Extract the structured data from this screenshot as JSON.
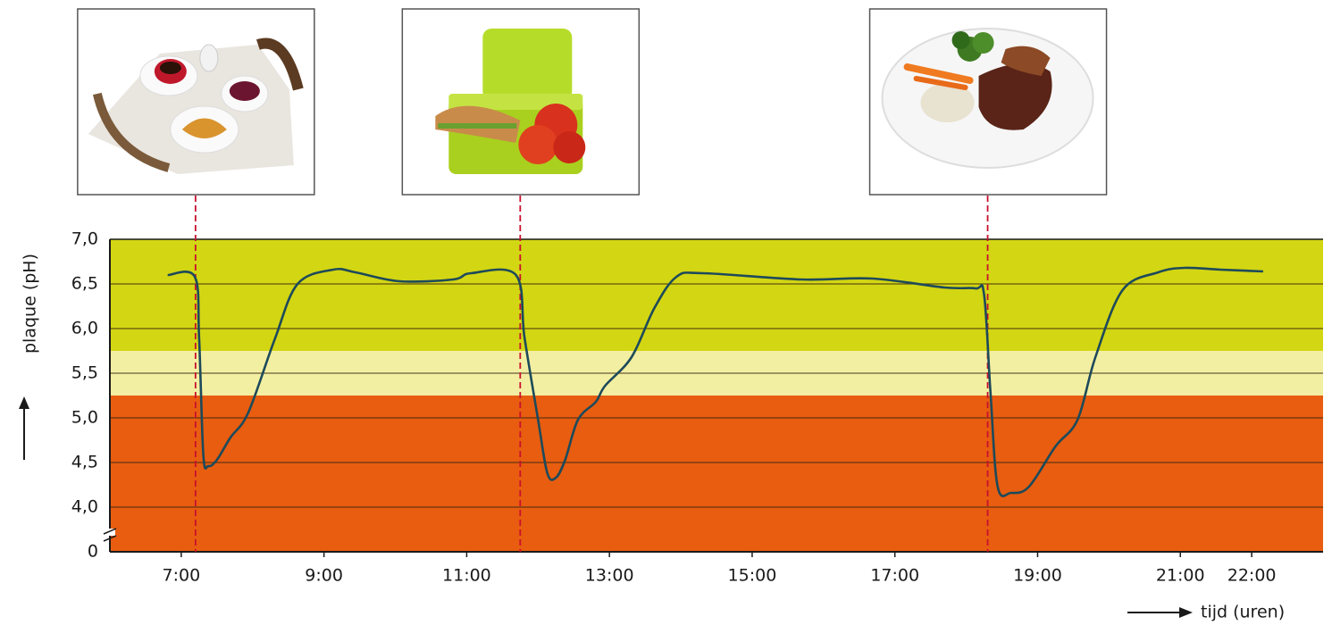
{
  "chart_data": {
    "type": "line",
    "ylabel": "plaque (pH)",
    "xlabel": "tijd (uren)",
    "xlim": [
      6,
      23
    ],
    "xticks": [
      {
        "value": 7,
        "label": "7:00"
      },
      {
        "value": 9,
        "label": "9:00"
      },
      {
        "value": 11,
        "label": "11:00"
      },
      {
        "value": 13,
        "label": "13:00"
      },
      {
        "value": 15,
        "label": "15:00"
      },
      {
        "value": 17,
        "label": "17:00"
      },
      {
        "value": 19,
        "label": "19:00"
      },
      {
        "value": 21,
        "label": "21:00"
      },
      {
        "value": 22,
        "label": "22:00"
      }
    ],
    "ylim": [
      0,
      7
    ],
    "ybreak": [
      0,
      3.5
    ],
    "yticks": [
      0,
      {
        "value": 4,
        "label": "4,0"
      },
      {
        "value": 4.5,
        "label": "4,5"
      },
      {
        "value": 5,
        "label": "5,0"
      },
      {
        "value": 5.5,
        "label": "5,5"
      },
      {
        "value": 6,
        "label": "6,0"
      },
      {
        "value": 6.5,
        "label": "6,5"
      },
      {
        "value": 7,
        "label": "7,0"
      }
    ],
    "grid": true,
    "zones": [
      {
        "from": 5.75,
        "to": 7,
        "color": "#d3d613"
      },
      {
        "from": 5.25,
        "to": 5.75,
        "color": "#f3efa2"
      },
      {
        "from": 0,
        "to": 5.25,
        "color": "#e85d10"
      }
    ],
    "meals": [
      7.2,
      11.75,
      18.3
    ],
    "meal_color": "#c8102e",
    "series": [
      {
        "color": "#1d4a5a",
        "x": [
          6.81,
          7.19,
          7.25,
          7.31,
          7.38,
          7.5,
          7.69,
          7.94,
          8.31,
          8.63,
          9.13,
          9.44,
          10.06,
          10.81,
          11.06,
          11.69,
          11.81,
          12.0,
          12.13,
          12.25,
          12.38,
          12.56,
          12.81,
          12.94,
          13.31,
          13.63,
          13.94,
          14.31,
          15.69,
          16.69,
          17.69,
          18.13,
          18.25,
          18.34,
          18.44,
          18.63,
          18.88,
          19.25,
          19.56,
          19.81,
          20.19,
          20.69,
          21.06,
          21.56,
          22.16
        ],
        "values": [
          6.6,
          6.58,
          5.9,
          4.58,
          4.46,
          4.53,
          4.78,
          5.06,
          5.88,
          6.5,
          6.66,
          6.63,
          6.53,
          6.55,
          6.62,
          6.6,
          5.9,
          4.98,
          4.38,
          4.33,
          4.53,
          4.98,
          5.18,
          5.36,
          5.68,
          6.23,
          6.58,
          6.62,
          6.55,
          6.56,
          6.46,
          6.45,
          6.38,
          5.28,
          4.23,
          4.16,
          4.23,
          4.68,
          4.98,
          5.68,
          6.43,
          6.63,
          6.68,
          6.66,
          6.64
        ]
      }
    ]
  }
}
